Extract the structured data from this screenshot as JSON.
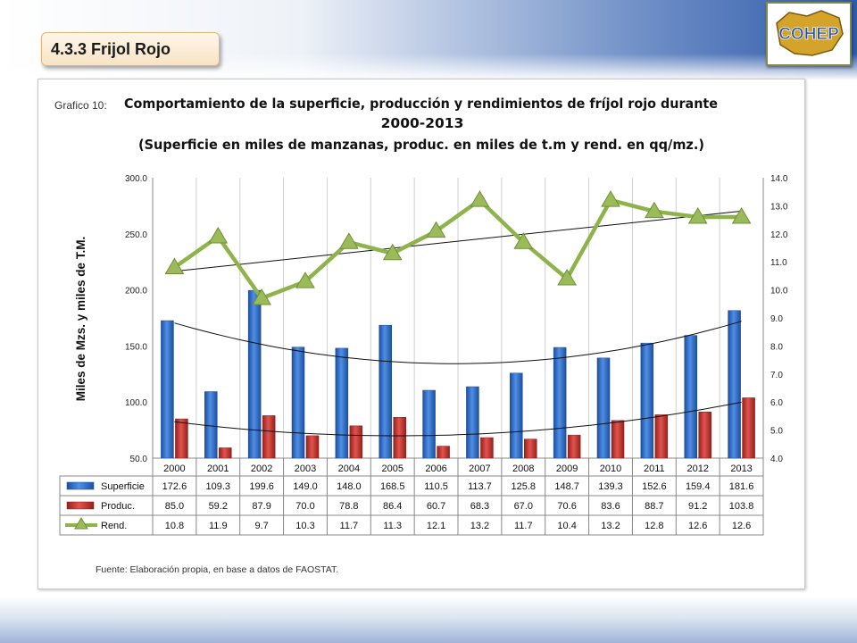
{
  "section": {
    "title": "4.3.3 Frijol Rojo"
  },
  "logo": {
    "text": "COHEP"
  },
  "chart": {
    "figure_label": "Grafico 10:",
    "title_lines": [
      "Comportamiento de la superficie, producción y rendimientos de fríjol rojo durante",
      "2000-2013",
      "(Superficie en miles de manzanas, produc. en miles de t.m y rend. en  qq/mz.)"
    ],
    "source": "Fuente: Elaboración propia, en base a datos de FAOSTAT."
  },
  "chart_data": {
    "type": "bar",
    "categories": [
      "2000",
      "2001",
      "2002",
      "2003",
      "2004",
      "2005",
      "2006",
      "2007",
      "2008",
      "2009",
      "2010",
      "2011",
      "2012",
      "2013"
    ],
    "series": [
      {
        "name": "Superficie",
        "type": "bar",
        "axis": "left",
        "color": "#2b6cc9",
        "values": [
          172.6,
          109.3,
          199.6,
          149.0,
          148.0,
          168.5,
          110.5,
          113.7,
          125.8,
          148.7,
          139.3,
          152.6,
          159.4,
          181.6
        ]
      },
      {
        "name": "Produc.",
        "type": "bar",
        "axis": "left",
        "color": "#c8302c",
        "values": [
          85.0,
          59.2,
          87.9,
          70.0,
          78.8,
          86.4,
          60.7,
          68.3,
          67.0,
          70.6,
          83.6,
          88.7,
          91.2,
          103.8
        ]
      },
      {
        "name": "Rend.",
        "type": "line",
        "axis": "right",
        "color": "#8db34a",
        "values": [
          10.8,
          11.9,
          9.7,
          10.3,
          11.7,
          11.3,
          12.1,
          13.2,
          11.7,
          10.4,
          13.2,
          12.8,
          12.6,
          12.6
        ]
      }
    ],
    "ylabel": "Miles de Mzs. y miles de T.M.",
    "ylim": [
      50,
      300
    ],
    "yticks": [
      "50.0",
      "100.0",
      "150.0",
      "200.0",
      "250.0",
      "300.0"
    ],
    "y2lim": [
      4,
      14
    ],
    "y2ticks": [
      "4.0",
      "5.0",
      "6.0",
      "7.0",
      "8.0",
      "9.0",
      "10.0",
      "11.0",
      "12.0",
      "13.0",
      "14.0"
    ],
    "trendlines": [
      "polynomial (Superficie)",
      "polynomial (Produc.)",
      "linear (Rend.)"
    ],
    "legend": "data-table",
    "grid": "vertical"
  }
}
